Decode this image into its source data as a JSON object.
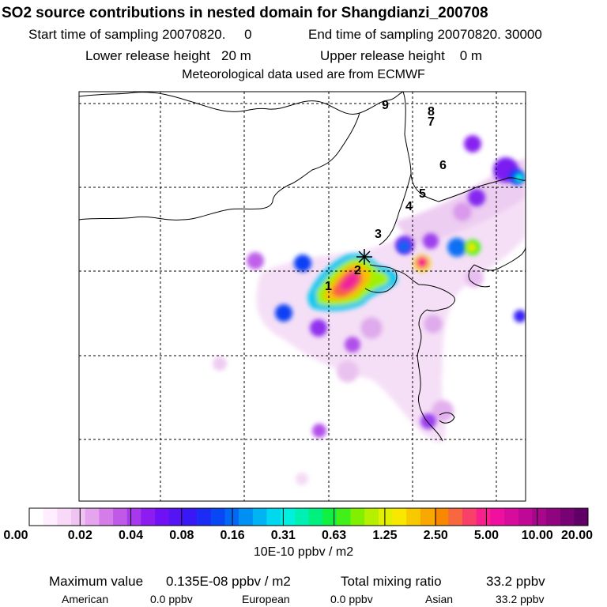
{
  "header": {
    "title": "SO2 source contributions in nested domain for Shangdianzi_200708",
    "start_label": "Start time of sampling 20070820.     0",
    "end_label": "End time of sampling 20070820. 30000",
    "lower_label": "Lower release height   20 m",
    "upper_label": "Upper release height    0 m",
    "met_label": "Meteorological data used are from ECMWF"
  },
  "map": {
    "site_labels": [
      "1",
      "2",
      "3",
      "4",
      "5",
      "6",
      "7",
      "8",
      "9"
    ]
  },
  "colorbar": {
    "tick_labels": [
      "0.00",
      "0.02",
      "0.04",
      "0.08",
      "0.16",
      "0.31",
      "0.63",
      "1.25",
      "2.50",
      "5.00",
      "10.00",
      "20.00"
    ],
    "colors": [
      "#ffffff",
      "#ffeeff",
      "#f8daf8",
      "#f0c4f2",
      "#e4a4ee",
      "#d47ce8",
      "#c058e8",
      "#a838ec",
      "#8c1cf0",
      "#7010f4",
      "#5414f4",
      "#3818f4",
      "#1c2cf4",
      "#0848f4",
      "#0068f4",
      "#0090f4",
      "#00b4f4",
      "#00d8f0",
      "#00f0e0",
      "#00f0b4",
      "#00f080",
      "#10f040",
      "#40f018",
      "#80f000",
      "#b4f000",
      "#e0f000",
      "#f8e800",
      "#f8c800",
      "#f8a800",
      "#f88800",
      "#f86840",
      "#f84068",
      "#f8208c",
      "#f010a0",
      "#d80c9c",
      "#c00896",
      "#a8068c",
      "#900480",
      "#780274",
      "#600066"
    ],
    "unit": "10E-10 ppbv / m2"
  },
  "footer": {
    "max_label": "Maximum value",
    "max_value": "0.135E-08 ppbv / m2",
    "total_label": "Total mixing ratio",
    "total_value": "33.2 ppbv",
    "american_label": "American",
    "american_value": "0.0 ppbv",
    "european_label": "European",
    "european_value": "0.0 ppbv",
    "asian_label": "Asian",
    "asian_value": "33.2 ppbv"
  }
}
